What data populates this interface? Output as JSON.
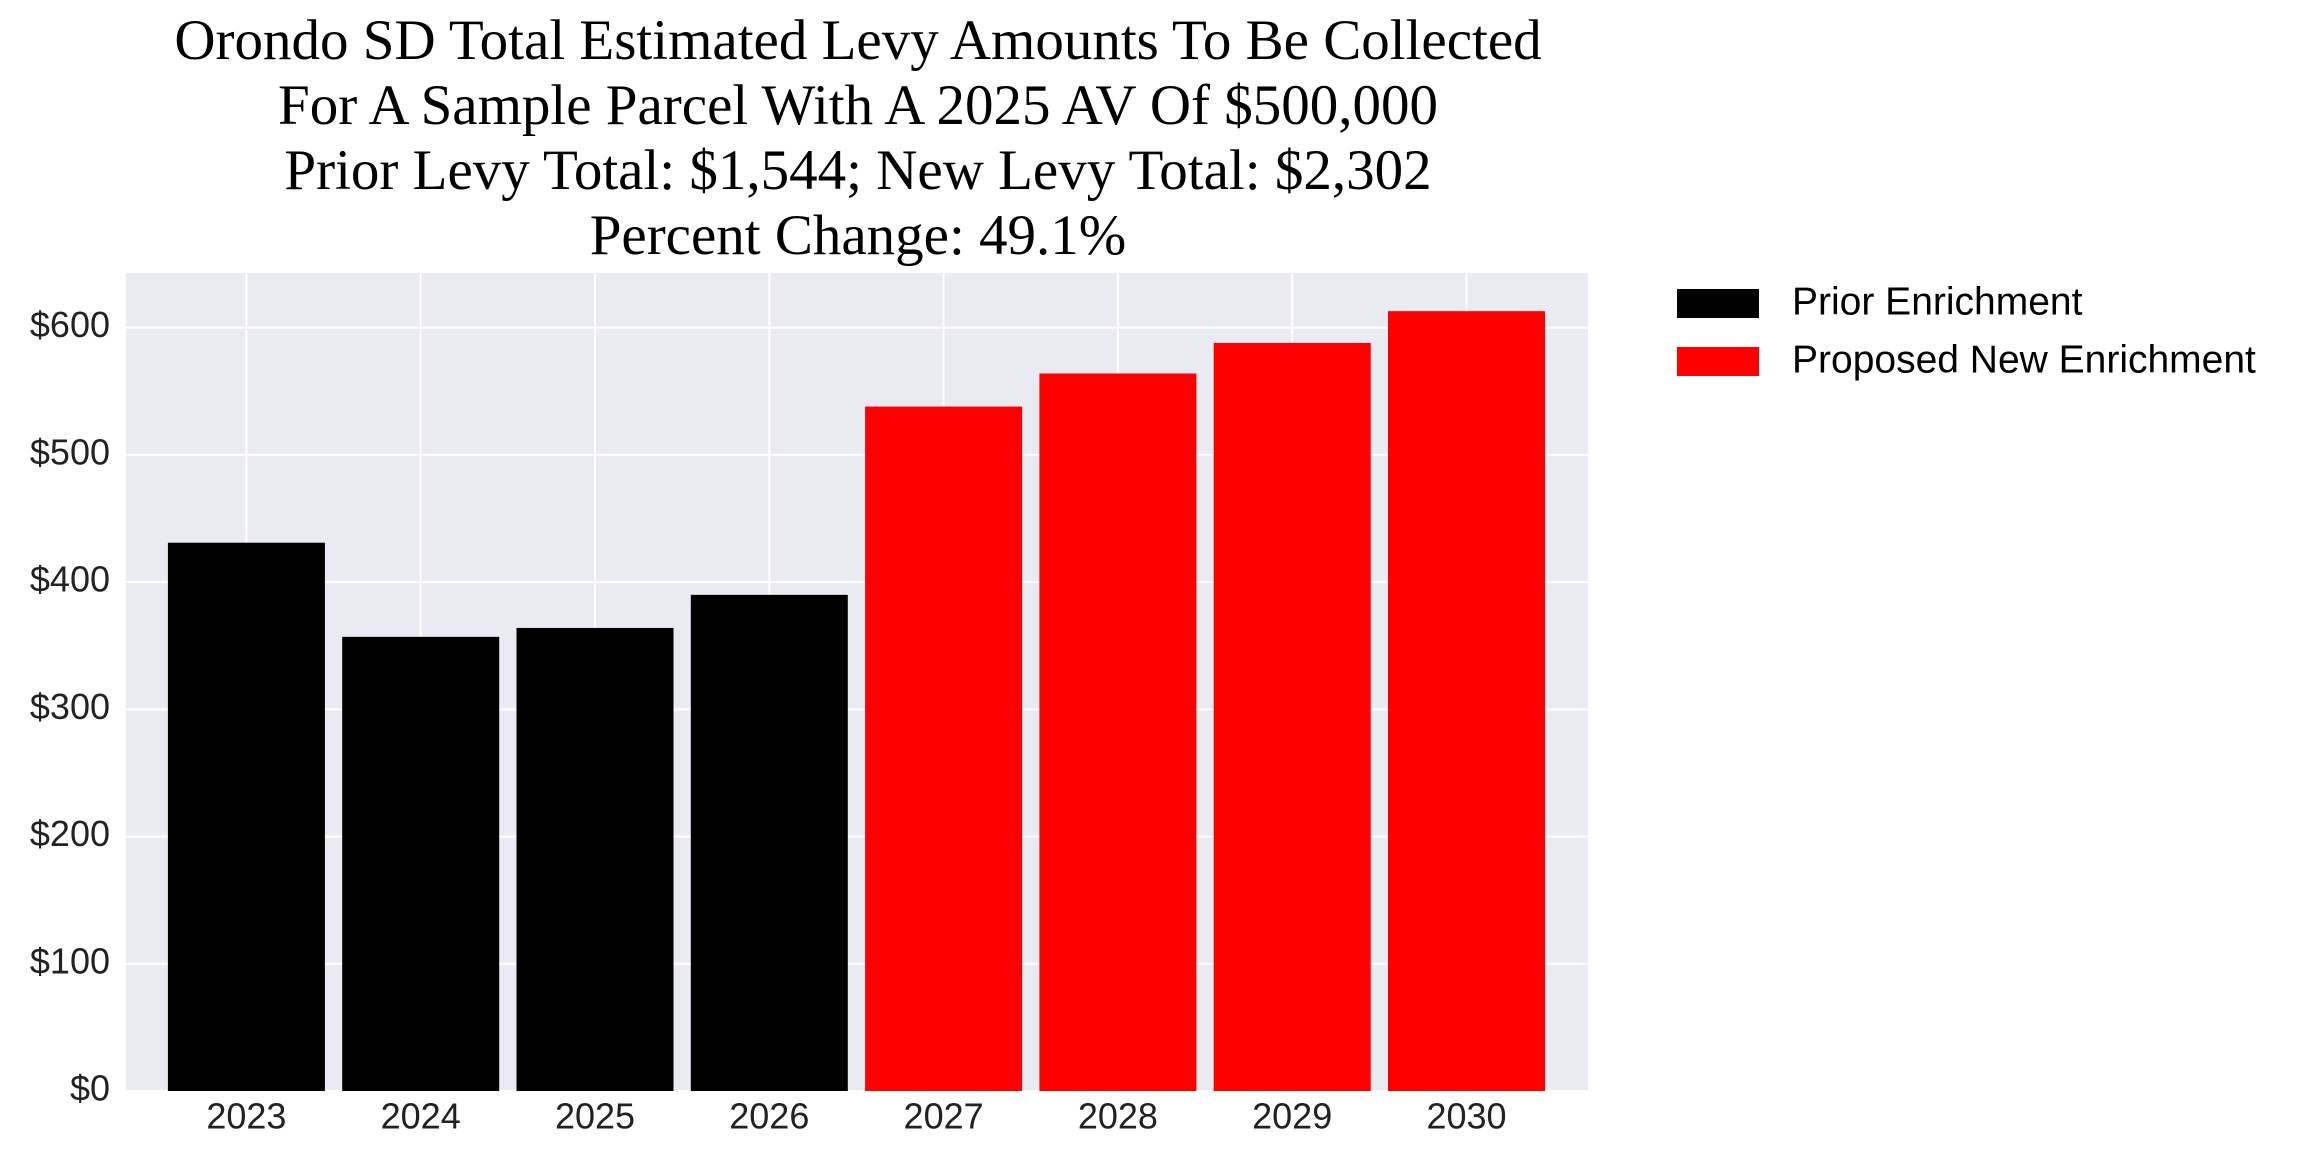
{
  "chart_data": {
    "type": "bar",
    "title": [
      "Orondo SD Total Estimated Levy Amounts To Be Collected",
      "For A Sample Parcel With A 2025 AV Of $500,000",
      "Prior Levy Total:  $1,544; New Levy Total: $2,302",
      "Percent Change: 49.1%"
    ],
    "categories": [
      "2023",
      "2024",
      "2025",
      "2026",
      "2027",
      "2028",
      "2029",
      "2030"
    ],
    "series": [
      {
        "name": "Prior Enrichment",
        "color": "#000000",
        "values": [
          431,
          357,
          364,
          390,
          null,
          null,
          null,
          null
        ]
      },
      {
        "name": "Proposed New Enrichment",
        "color": "#ff0000",
        "values": [
          null,
          null,
          null,
          null,
          538,
          564,
          588,
          613
        ]
      }
    ],
    "ylim": [
      0,
      643
    ],
    "yticks": [
      {
        "value": 0,
        "label": "$0"
      },
      {
        "value": 100,
        "label": "$100"
      },
      {
        "value": 200,
        "label": "$200"
      },
      {
        "value": 300,
        "label": "$300"
      },
      {
        "value": 400,
        "label": "$400"
      },
      {
        "value": 500,
        "label": "$500"
      },
      {
        "value": 600,
        "label": "$600"
      }
    ],
    "grid": true,
    "legend": "outside-right"
  }
}
